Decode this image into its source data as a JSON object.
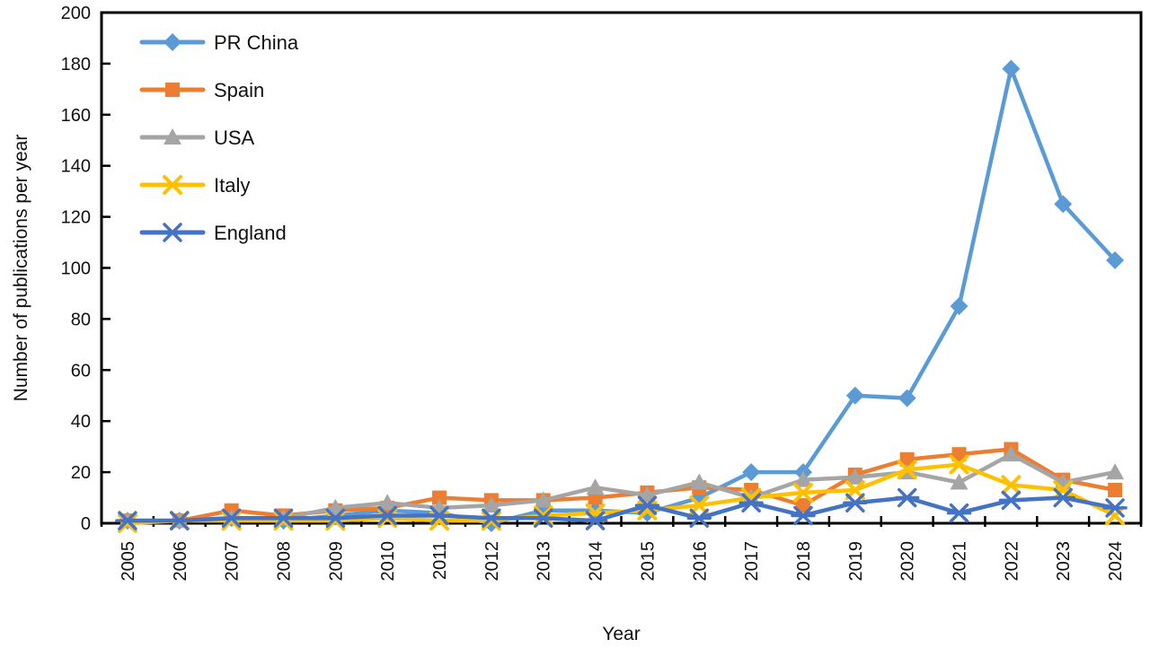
{
  "figure": {
    "background": "#ffffff",
    "text_color": "#111111",
    "axis_color": "#000000"
  },
  "chart_data": {
    "type": "line",
    "title": "",
    "xlabel": "Year",
    "ylabel": "Number of publications per year",
    "ylim": [
      0,
      200
    ],
    "ytick_step": 20,
    "yticks": [
      0,
      20,
      40,
      60,
      80,
      100,
      120,
      140,
      160,
      180,
      200
    ],
    "grid": false,
    "legend_position": "top-left-inside",
    "categories": [
      "2005",
      "2006",
      "2007",
      "2008",
      "2009",
      "2010",
      "2011",
      "2012",
      "2013",
      "2014",
      "2015",
      "2016",
      "2017",
      "2018",
      "2019",
      "2020",
      "2021",
      "2022",
      "2023",
      "2024"
    ],
    "series": [
      {
        "name": "PR China",
        "color": "#5B9BD5",
        "marker": "diamond",
        "values": [
          1,
          1,
          2,
          1,
          3,
          5,
          4,
          0,
          5,
          5,
          4,
          10,
          20,
          20,
          50,
          49,
          85,
          178,
          125,
          103
        ]
      },
      {
        "name": "Spain",
        "color": "#ED7D31",
        "marker": "square",
        "values": [
          1,
          1,
          5,
          3,
          5,
          6,
          10,
          9,
          9,
          10,
          12,
          14,
          13,
          7,
          19,
          25,
          27,
          29,
          17,
          13
        ]
      },
      {
        "name": "USA",
        "color": "#A5A5A5",
        "marker": "triangle",
        "values": [
          1,
          1,
          2,
          2,
          6,
          8,
          6,
          7,
          9,
          14,
          11,
          16,
          10,
          17,
          18,
          20,
          16,
          27,
          16,
          20
        ]
      },
      {
        "name": "Italy",
        "color": "#FFC000",
        "marker": "x",
        "values": [
          0,
          1,
          1,
          1,
          1,
          2,
          1,
          1,
          3,
          4,
          5,
          7,
          10,
          12,
          13,
          21,
          23,
          15,
          13,
          3
        ]
      },
      {
        "name": "England",
        "color": "#4472C4",
        "marker": "star",
        "values": [
          1,
          1,
          2,
          2,
          2,
          3,
          3,
          2,
          2,
          1,
          7,
          2,
          8,
          3,
          8,
          10,
          4,
          9,
          10,
          6
        ]
      }
    ]
  }
}
